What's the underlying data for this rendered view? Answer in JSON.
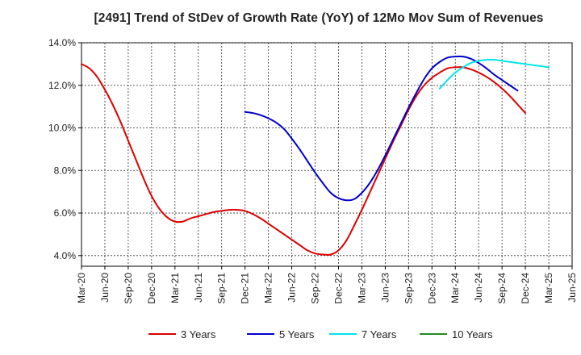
{
  "chart_data": {
    "type": "line",
    "title": "[2491]  Trend of StDev of Growth Rate (YoY) of 12Mo Mov Sum of Revenues",
    "xlabel": "",
    "ylabel": "",
    "ylim": [
      3.5,
      14.0
    ],
    "y_ticks": [
      4.0,
      6.0,
      8.0,
      10.0,
      12.0,
      14.0
    ],
    "y_tick_labels": [
      "4.0%",
      "6.0%",
      "8.0%",
      "10.0%",
      "12.0%",
      "14.0%"
    ],
    "x_tick_labels": [
      "Mar-20",
      "Jun-20",
      "Sep-20",
      "Dec-20",
      "Mar-21",
      "Jun-21",
      "Sep-21",
      "Dec-21",
      "Mar-22",
      "Jun-22",
      "Sep-22",
      "Dec-22",
      "Mar-23",
      "Jun-23",
      "Sep-23",
      "Dec-23",
      "Mar-24",
      "Jun-24",
      "Sep-24",
      "Dec-24",
      "Mar-25",
      "Jun-25"
    ],
    "x_index_range": [
      0,
      63
    ],
    "grid": true,
    "legend_position": "bottom",
    "series": [
      {
        "name": "3 Years",
        "color": "#dd0000",
        "start_index": 0,
        "values": [
          13.0,
          12.8,
          12.4,
          11.8,
          11.1,
          10.3,
          9.4,
          8.5,
          7.6,
          6.8,
          6.2,
          5.8,
          5.6,
          5.6,
          5.75,
          5.85,
          5.95,
          6.05,
          6.1,
          6.15,
          6.15,
          6.1,
          5.95,
          5.75,
          5.5,
          5.25,
          5.0,
          4.75,
          4.5,
          4.25,
          4.1,
          4.05,
          4.05,
          4.25,
          4.7,
          5.4,
          6.15,
          6.95,
          7.75,
          8.55,
          9.35,
          10.1,
          10.85,
          11.5,
          12.0,
          12.35,
          12.6,
          12.8,
          12.85,
          12.85,
          12.75,
          12.6,
          12.4,
          12.15,
          11.85,
          11.5,
          11.1,
          10.7
        ]
      },
      {
        "name": "5 Years",
        "color": "#0000cc",
        "start_index": 21,
        "values": [
          10.75,
          10.7,
          10.6,
          10.45,
          10.25,
          9.95,
          9.5,
          9.0,
          8.45,
          7.9,
          7.4,
          6.95,
          6.7,
          6.6,
          6.65,
          6.95,
          7.4,
          8.0,
          8.7,
          9.45,
          10.2,
          10.95,
          11.65,
          12.3,
          12.8,
          13.1,
          13.3,
          13.35,
          13.35,
          13.25,
          13.05,
          12.8,
          12.5,
          12.25,
          12.0,
          11.75
        ]
      },
      {
        "name": "7 Years",
        "color": "#00e5ee",
        "start_index": 46,
        "values": [
          11.85,
          12.25,
          12.6,
          12.85,
          13.05,
          13.15,
          13.2,
          13.2,
          13.15,
          13.1,
          13.05,
          13.0,
          12.95,
          12.9,
          12.85
        ]
      },
      {
        "name": "10 Years",
        "color": "#228b22",
        "start_index": 0,
        "values": []
      }
    ]
  }
}
